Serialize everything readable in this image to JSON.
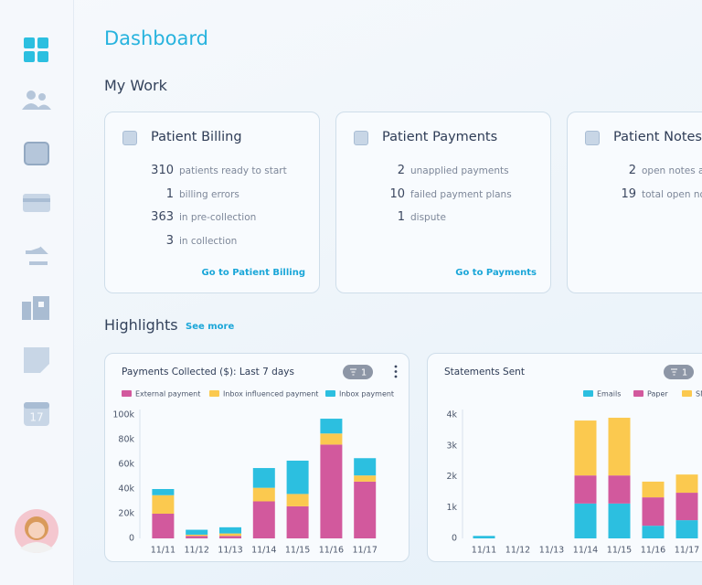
{
  "sidebar": {
    "calendar_day": 17
  },
  "header": {
    "title": "Dashboard"
  },
  "my_work": {
    "title": "My Work",
    "cards": [
      {
        "title": "Patient Billing",
        "items": [
          {
            "count": 310,
            "label": "patients ready to start"
          },
          {
            "count": 1,
            "label": "billing errors"
          },
          {
            "count": 363,
            "label": "in pre-collection"
          },
          {
            "count": 3,
            "label": "in collection"
          }
        ],
        "link": "Go to Patient Billing"
      },
      {
        "title": "Patient Payments",
        "items": [
          {
            "count": 2,
            "label": "unapplied payments"
          },
          {
            "count": 10,
            "label": "failed payment plans"
          },
          {
            "count": 1,
            "label": "dispute"
          }
        ],
        "link": "Go to Payments"
      },
      {
        "title": "Patient Notes",
        "items": [
          {
            "count": 2,
            "label": "open notes a"
          },
          {
            "count": 19,
            "label": "total open no"
          }
        ]
      }
    ]
  },
  "highlights": {
    "title": "Highlights",
    "link": "See more"
  },
  "chart_data": [
    {
      "type": "bar",
      "stacked": true,
      "title": "Payments Collected ($): Last 7 days",
      "filter_count": "1",
      "categories": [
        "11/11",
        "11/12",
        "11/13",
        "11/14",
        "11/15",
        "11/16",
        "11/17"
      ],
      "series": [
        {
          "name": "External payment",
          "color": "#d2599d",
          "values": [
            20000,
            2000,
            2000,
            30000,
            26000,
            76000,
            46000
          ]
        },
        {
          "name": "Inbox influenced payment",
          "color": "#fbc94f",
          "values": [
            15000,
            1000,
            2000,
            11000,
            10000,
            9000,
            5000
          ]
        },
        {
          "name": "Inbox payment",
          "color": "#2cbfe0",
          "values": [
            5000,
            4000,
            5000,
            16000,
            27000,
            12000,
            14000
          ]
        }
      ],
      "ylim": [
        0,
        100000
      ],
      "yticks": [
        0,
        {
          "value": 20000,
          "label": "20k"
        },
        {
          "value": 40000,
          "label": "40k"
        },
        {
          "value": 60000,
          "label": "60k"
        },
        {
          "value": 80000,
          "label": "80k"
        },
        {
          "value": 100000,
          "label": "100k"
        }
      ]
    },
    {
      "type": "bar",
      "stacked": true,
      "title": "Statements Sent",
      "filter_count": "1",
      "categories": [
        "11/11",
        "11/12",
        "11/13",
        "11/14",
        "11/15",
        "11/16",
        "11/17"
      ],
      "series": [
        {
          "name": "Emails",
          "color": "#2cbfe0",
          "values": [
            80,
            0,
            0,
            1130,
            1130,
            410,
            590
          ]
        },
        {
          "name": "Paper",
          "color": "#d2599d",
          "values": [
            0,
            0,
            0,
            910,
            910,
            920,
            890
          ]
        },
        {
          "name": "SM",
          "color": "#fbc94f",
          "values": [
            0,
            0,
            0,
            1780,
            1870,
            510,
            590
          ]
        }
      ],
      "ylim": [
        0,
        4000
      ],
      "yticks": [
        0,
        {
          "value": 1000,
          "label": "1k"
        },
        {
          "value": 2000,
          "label": "2k"
        },
        {
          "value": 3000,
          "label": "3k"
        },
        {
          "value": 4000,
          "label": "4k"
        }
      ]
    }
  ]
}
